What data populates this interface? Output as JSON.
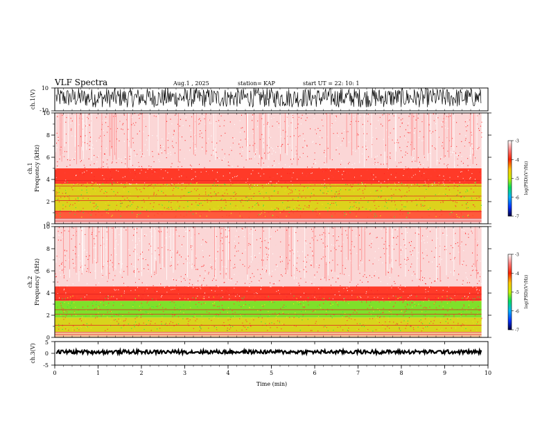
{
  "header": {
    "title": "VLF Spectra",
    "date": "Aug.1  , 2025",
    "station": "station= KAP",
    "start": "start  UT =   22: 10: 1"
  },
  "chart_data": [
    {
      "type": "line",
      "panel": "ch1-waveform",
      "ylabel": "ch.1(V)",
      "ylim": [
        -10,
        10
      ],
      "yticks": [
        "10",
        "-10"
      ],
      "xlim": [
        0,
        10
      ],
      "note_values": "dense noise oscillating roughly between -7 and 10 V"
    },
    {
      "type": "heatmap",
      "panel": "ch1-spectrogram",
      "ylabel_line1": "ch.1",
      "ylabel_line2": "Frequency  (kHz)",
      "ylim": [
        0,
        10
      ],
      "yticks": [
        "0",
        "2",
        "4",
        "6",
        "8",
        "10"
      ],
      "xlim": [
        0,
        9.85
      ],
      "bands": [
        {
          "from": 0,
          "to": 0.5,
          "color": "#f4c0c0"
        },
        {
          "from": 0.5,
          "to": 1.2,
          "color": "#ff5a3a"
        },
        {
          "from": 1.2,
          "to": 3.6,
          "color": "#ddd21c"
        },
        {
          "from": 3.6,
          "to": 5.0,
          "color": "#ff3a28"
        },
        {
          "from": 5.0,
          "to": 10,
          "color": "#fbd6d6"
        }
      ],
      "colorbar": {
        "label": "log(PSD)(V²/Hz)",
        "ticks": [
          "-3",
          "-4",
          "-5",
          "-6",
          "-7"
        ],
        "range": [
          -7,
          -3
        ]
      }
    },
    {
      "type": "heatmap",
      "panel": "ch2-spectrogram",
      "ylabel_line1": "ch.2",
      "ylabel_line2": "Frequency  (kHz)",
      "ylim": [
        0,
        10
      ],
      "yticks": [
        "0",
        "2",
        "4",
        "6",
        "8",
        "10"
      ],
      "xlim": [
        0,
        9.85
      ],
      "bands": [
        {
          "from": 0,
          "to": 0.5,
          "color": "#f6c8a0"
        },
        {
          "from": 0.5,
          "to": 1.8,
          "color": "#d8d41c"
        },
        {
          "from": 1.8,
          "to": 3.3,
          "color": "#7fe02a"
        },
        {
          "from": 3.3,
          "to": 4.6,
          "color": "#ff3a28"
        },
        {
          "from": 4.6,
          "to": 10,
          "color": "#fbd6d6"
        }
      ],
      "colorbar": {
        "label": "log(PSD)(V²/Hz)",
        "ticks": [
          "-3",
          "-4",
          "-5",
          "-6",
          "-7"
        ],
        "range": [
          -7,
          -3
        ]
      }
    },
    {
      "type": "line",
      "panel": "ch3-waveform",
      "ylabel": "ch.3(V)",
      "ylim": [
        -5,
        5
      ],
      "yticks": [
        "5",
        "0",
        "-5"
      ],
      "xlim": [
        0,
        10
      ],
      "xlabel": "Time  (min)",
      "xticks": [
        "0",
        "1",
        "2",
        "3",
        "4",
        "5",
        "6",
        "7",
        "8",
        "9",
        "10"
      ],
      "level": 0.6
    }
  ],
  "colors": {
    "trace": "#000000",
    "frame": "#000000"
  }
}
